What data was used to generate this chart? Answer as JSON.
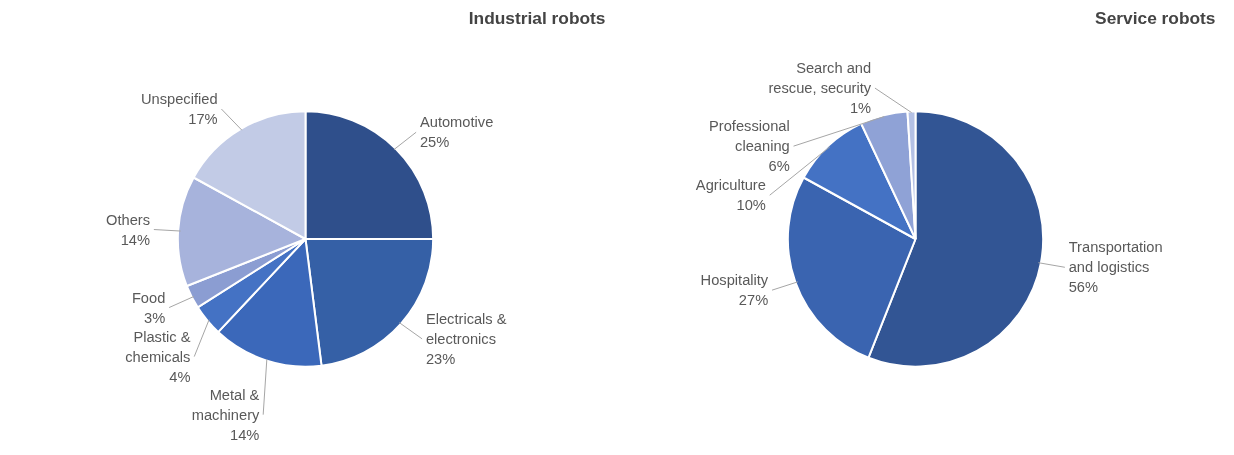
{
  "chart_data": [
    {
      "type": "pie",
      "title": "Industrial robots",
      "categories": [
        "Automotive",
        "Electricals & electronics",
        "Metal & machinery",
        "Plastic & chemicals",
        "Food",
        "Others",
        "Unspecified"
      ],
      "values": [
        25,
        23,
        14,
        4,
        3,
        14,
        17
      ],
      "value_labels": [
        "25%",
        "23%",
        "14%",
        "4%",
        "3%",
        "14%",
        "17%"
      ],
      "colors": [
        "#2f4f8b",
        "#3560a6",
        "#3b68ba",
        "#4472c4",
        "#8b9dd2",
        "#a7b3dc",
        "#c2cbe6"
      ]
    },
    {
      "type": "pie",
      "title": "Service robots",
      "categories": [
        "Transportation and logistics",
        "Hospitality",
        "Agriculture",
        "Professional cleaning",
        "Search and rescue, security"
      ],
      "values": [
        56,
        27,
        10,
        6,
        1
      ],
      "value_labels": [
        "56%",
        "27%",
        "10%",
        "6%",
        "1%"
      ],
      "colors": [
        "#325594",
        "#3a64b0",
        "#4472c4",
        "#8fa2d6",
        "#b4c1e5"
      ]
    }
  ]
}
